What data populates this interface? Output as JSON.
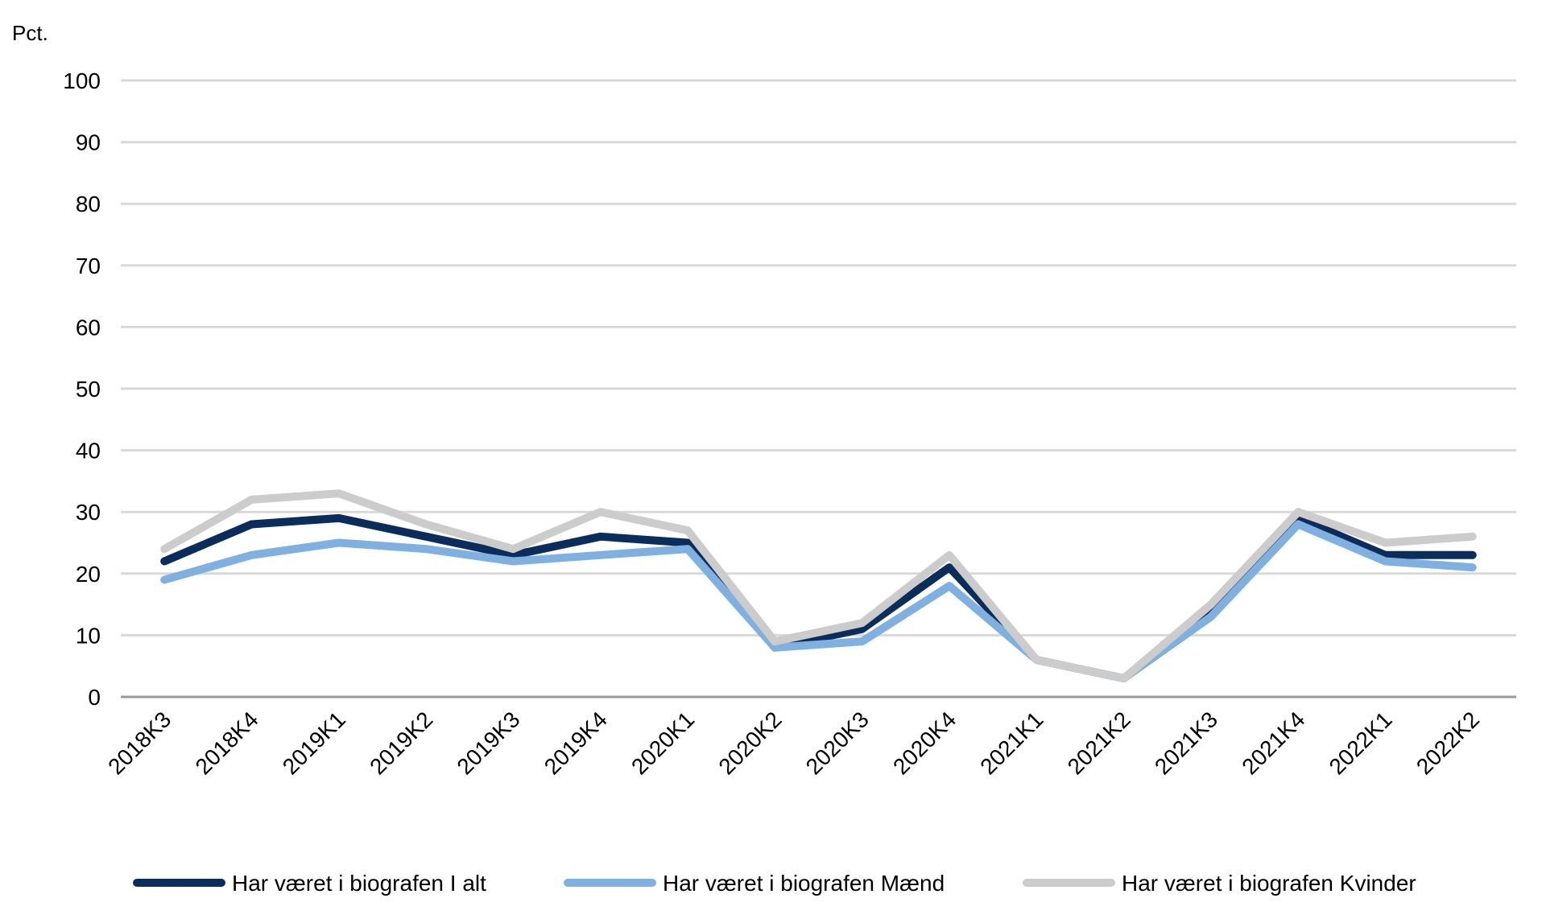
{
  "chart_data": {
    "type": "line",
    "title": "",
    "xlabel": "",
    "ylabel": "Pct.",
    "ylim": [
      0,
      100
    ],
    "yticks": [
      0,
      10,
      20,
      30,
      40,
      50,
      60,
      70,
      80,
      90,
      100
    ],
    "grid": true,
    "legend_position": "bottom",
    "categories": [
      "2018K3",
      "2018K4",
      "2019K1",
      "2019K2",
      "2019K3",
      "2019K4",
      "2020K1",
      "2020K2",
      "2020K3",
      "2020K4",
      "2021K1",
      "2021K2",
      "2021K3",
      "2021K4",
      "2022K1",
      "2022K2"
    ],
    "series": [
      {
        "name": "Har været i biografen I alt",
        "color": "#0b2d5c",
        "values": [
          22,
          28,
          29,
          26,
          23,
          26,
          25,
          8,
          11,
          21,
          6,
          3,
          14,
          29,
          23,
          23
        ]
      },
      {
        "name": "Har været i biografen Mænd",
        "color": "#7fb0e0",
        "values": [
          19,
          23,
          25,
          24,
          22,
          23,
          24,
          8,
          9,
          18,
          6,
          3,
          13,
          28,
          22,
          21
        ]
      },
      {
        "name": "Har været i biografen Kvinder",
        "color": "#cccccc",
        "values": [
          24,
          32,
          33,
          28,
          24,
          30,
          27,
          9,
          12,
          23,
          6,
          3,
          15,
          30,
          25,
          26
        ]
      }
    ]
  }
}
